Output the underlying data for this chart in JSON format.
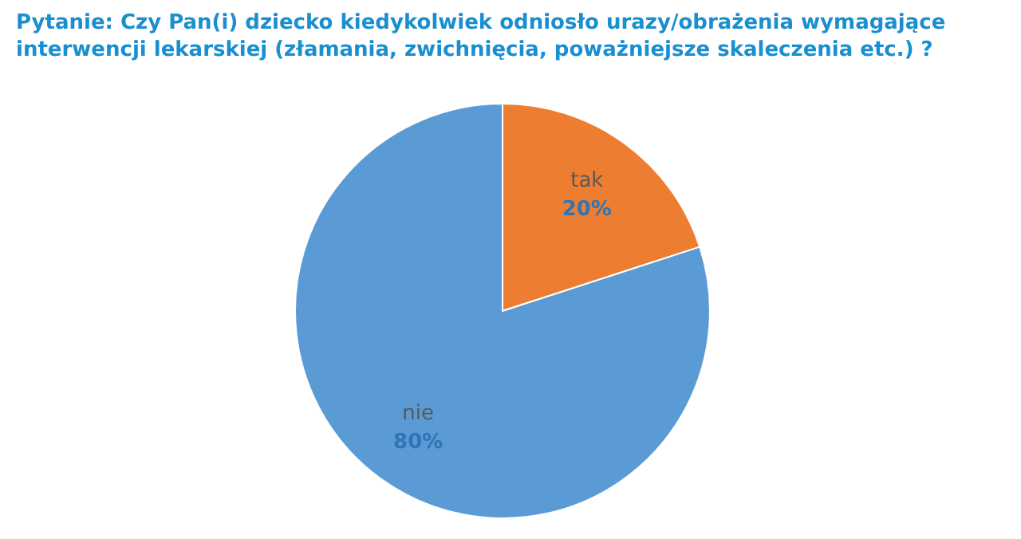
{
  "chart_data": {
    "type": "pie",
    "title": "Pytanie: Czy Pan(i) dziecko kiedykolwiek odniosło urazy/obrażenia wymagające interwencji lekarskiej (złamania, zwichnięcia, poważniejsze skaleczenia etc.) ?",
    "categories": [
      "tak",
      "nie"
    ],
    "values": [
      20,
      80
    ],
    "colors": [
      "#ed7d31",
      "#5b9bd5"
    ],
    "value_labels": [
      "20%",
      "80%"
    ],
    "legend": false
  }
}
